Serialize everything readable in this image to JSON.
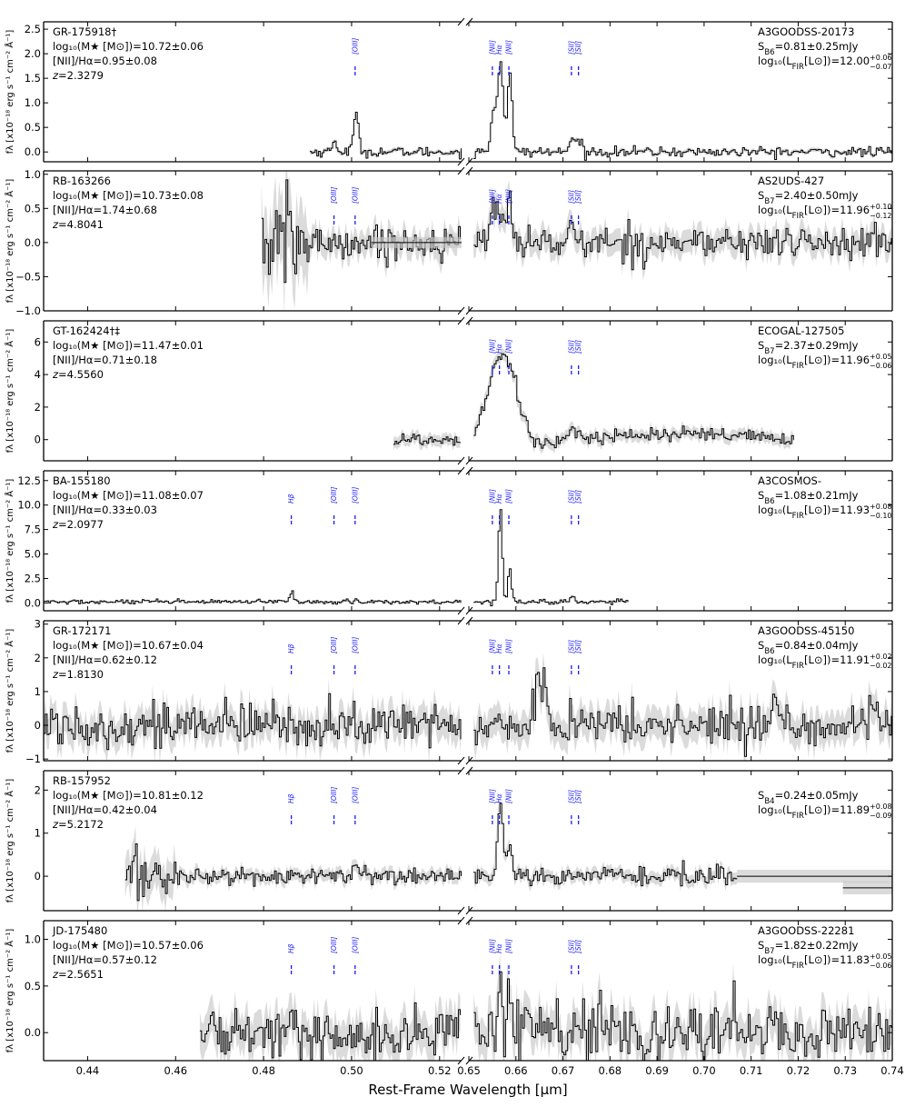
{
  "xlabel": "Rest-Frame Wavelength [μm]",
  "ylabel_text": "fλ [x10⁻¹⁸ erg s⁻¹ cm⁻² Å⁻¹]",
  "colors": {
    "spectrum": "#000000",
    "error": "#c8c8c8",
    "lines": "#1a1aff"
  },
  "chart_data": {
    "type": "line",
    "axis_breaks": [
      [
        0.525,
        0.65
      ]
    ],
    "x_ticks_left": [
      0.44,
      0.46,
      0.48,
      0.5,
      0.52
    ],
    "x_ticks_right": [
      0.65,
      0.66,
      0.67,
      0.68,
      0.69,
      0.7,
      0.71,
      0.72,
      0.73,
      0.74
    ],
    "xlim_left": [
      0.43,
      0.525
    ],
    "xlim_right": [
      0.65,
      0.74
    ],
    "emission_lines": [
      {
        "label": "Hβ",
        "wavelength": 0.4863
      },
      {
        "label": "[OIII]",
        "wavelength": 0.496
      },
      {
        "label": "[OIII]",
        "wavelength": 0.5008
      },
      {
        "label": "[NII]",
        "wavelength": 0.655
      },
      {
        "label": "Hα",
        "wavelength": 0.6565
      },
      {
        "label": "[NII]",
        "wavelength": 0.6585
      },
      {
        "label": "[SII]",
        "wavelength": 0.6718
      },
      {
        "label": "[SII]",
        "wavelength": 0.6733
      }
    ],
    "panels": [
      {
        "id": "GR-175918†",
        "mass": "log₁₀(M★ [M⊙])=10.72±0.06",
        "ratio": "[NII]/Hα=0.95±0.08",
        "redshift": "z=2.3279",
        "alma_id": "A3GOODSS-20173",
        "flux": "S_B6=0.81±0.25mJy",
        "lfir": "log₁₀(L_FIR[L⊙])=12.00",
        "lfir_err_up": "+0.06",
        "lfir_err_low": "−0.07",
        "ylim": [
          -0.2,
          2.65
        ],
        "yticks": [
          0.0,
          0.5,
          1.0,
          1.5,
          2.0,
          2.5
        ],
        "ytick_labels": [
          "0.0",
          "0.5",
          "1.0",
          "1.5",
          "2.0",
          "2.5"
        ],
        "lines_shown": [
          2,
          3,
          4,
          5,
          6,
          7
        ],
        "coverage": [
          [
            0.4905,
            0.525
          ],
          [
            0.651,
            0.74
          ]
        ],
        "noise": 0.05,
        "err_scale": 0.6,
        "continuum": 0.0,
        "features": [
          {
            "wavelength": 0.5008,
            "amplitude": 0.72,
            "sigma": 0.0006
          },
          {
            "wavelength": 0.496,
            "amplitude": 0.2,
            "sigma": 0.0006
          },
          {
            "wavelength": 0.655,
            "amplitude": 0.8,
            "sigma": 0.0005
          },
          {
            "wavelength": 0.6565,
            "amplitude": 1.85,
            "sigma": 0.0006
          },
          {
            "wavelength": 0.6585,
            "amplitude": 1.6,
            "sigma": 0.0005
          },
          {
            "wavelength": 0.6718,
            "amplitude": 0.3,
            "sigma": 0.0005
          },
          {
            "wavelength": 0.6733,
            "amplitude": 0.25,
            "sigma": 0.0005
          }
        ],
        "flat_segment": null
      },
      {
        "id": "RB-163266",
        "mass": "log₁₀(M★ [M⊙])=10.73±0.08",
        "ratio": "[NII]/Hα=1.74±0.68",
        "redshift": "z=4.8041",
        "alma_id": "AS2UDS-427",
        "flux": "S_B7=2.40±0.50mJy",
        "lfir": "log₁₀(L_FIR[L⊙])=11.96",
        "lfir_err_up": "+0.10",
        "lfir_err_low": "−0.12",
        "ylim": [
          -1.0,
          1.05
        ],
        "yticks": [
          -1.0,
          -0.5,
          0.0,
          0.5,
          1.0
        ],
        "ytick_labels": [
          "−1.0",
          "−0.5",
          "0.0",
          "0.5",
          "1.0"
        ],
        "lines_shown": [
          1,
          2,
          3,
          4,
          5,
          6,
          7
        ],
        "coverage": [
          [
            0.4795,
            0.525
          ],
          [
            0.651,
            0.74
          ]
        ],
        "noise": 0.12,
        "err_scale": 1.0,
        "continuum": 0.0,
        "noisy_start": 0.49,
        "features": [
          {
            "wavelength": 0.655,
            "amplitude": 0.45,
            "sigma": 0.0006
          },
          {
            "wavelength": 0.6565,
            "amplitude": 0.55,
            "sigma": 0.0006
          },
          {
            "wavelength": 0.6585,
            "amplitude": 0.75,
            "sigma": 0.0005
          },
          {
            "wavelength": 0.6718,
            "amplitude": 0.2,
            "sigma": 0.0005
          }
        ],
        "flat_segment": [
          0.5045,
          0.525,
          0.0,
          0.08
        ]
      },
      {
        "id": "GT-162424†‡",
        "mass": "log₁₀(M★ [M⊙])=11.47±0.01",
        "ratio": "[NII]/Hα=0.71±0.18",
        "redshift": "z=4.5560",
        "alma_id": "ECOGAL-127505",
        "flux": "S_B7=2.37±0.29mJy",
        "lfir": "log₁₀(L_FIR[L⊙])=11.96",
        "lfir_err_up": "+0.05",
        "lfir_err_low": "−0.06",
        "ylim": [
          -1.3,
          7.3
        ],
        "yticks": [
          0,
          2,
          4,
          6
        ],
        "ytick_labels": [
          "0",
          "2",
          "4",
          "6"
        ],
        "lines_shown": [
          3,
          4,
          5,
          6,
          7
        ],
        "coverage": [
          [
            0.5095,
            0.525
          ],
          [
            0.651,
            0.719
          ]
        ],
        "noise": 0.25,
        "err_scale": 1.0,
        "continuum": 0.0,
        "features": [
          {
            "wavelength": 0.657,
            "amplitude": 5.3,
            "sigma": 0.003
          }
        ],
        "broad_dip": true,
        "flat_segment": null
      },
      {
        "id": "BA-155180",
        "mass": "log₁₀(M★ [M⊙])=11.08±0.07",
        "ratio": "[NII]/Hα=0.33±0.03",
        "redshift": "z=2.0977",
        "alma_id": "A3COSMOS-",
        "flux": "S_B6=1.08±0.21mJy",
        "lfir": "log₁₀(L_FIR[L⊙])=11.93",
        "lfir_err_up": "+0.08",
        "lfir_err_low": "−0.10",
        "ylim": [
          -0.8,
          13.5
        ],
        "yticks": [
          0.0,
          2.5,
          5.0,
          7.5,
          10.0,
          12.5
        ],
        "ytick_labels": [
          "0.0",
          "2.5",
          "5.0",
          "7.5",
          "10.0",
          "12.5"
        ],
        "lines_shown": [
          0,
          1,
          2,
          3,
          4,
          5,
          6,
          7
        ],
        "coverage": [
          [
            0.43,
            0.525
          ],
          [
            0.651,
            0.684
          ]
        ],
        "noise": 0.12,
        "err_scale": 0.5,
        "continuum": 0.1,
        "features": [
          {
            "wavelength": 0.4863,
            "amplitude": 1.2,
            "sigma": 0.0004
          },
          {
            "wavelength": 0.5008,
            "amplitude": 0.4,
            "sigma": 0.0004
          },
          {
            "wavelength": 0.6565,
            "amplitude": 9.8,
            "sigma": 0.0004
          },
          {
            "wavelength": 0.6585,
            "amplitude": 3.4,
            "sigma": 0.0004
          },
          {
            "wavelength": 0.6718,
            "amplitude": 0.6,
            "sigma": 0.0005
          }
        ],
        "flat_segment": null
      },
      {
        "id": "GR-172171",
        "mass": "log₁₀(M★ [M⊙])=10.67±0.04",
        "ratio": "[NII]/Hα=0.62±0.12",
        "redshift": "z=1.8130",
        "alma_id": "A3GOODSS-45150",
        "flux": "S_B6=0.84±0.04mJy",
        "lfir": "log₁₀(L_FIR[L⊙])=11.91",
        "lfir_err_up": "+0.02",
        "lfir_err_low": "−0.02",
        "ylim": [
          -1.05,
          3.1
        ],
        "yticks": [
          -1,
          0,
          1,
          2,
          3
        ],
        "ytick_labels": [
          "−1",
          "0",
          "1",
          "2",
          "3"
        ],
        "lines_shown": [
          0,
          1,
          2,
          3,
          4,
          5,
          6,
          7
        ],
        "coverage": [
          [
            0.43,
            0.525
          ],
          [
            0.651,
            0.74
          ]
        ],
        "noise": 0.32,
        "err_scale": 1.0,
        "continuum": 0.0,
        "features": [
          {
            "wavelength": 0.6645,
            "amplitude": 2.1,
            "sigma": 0.0004
          },
          {
            "wavelength": 0.666,
            "amplitude": 1.5,
            "sigma": 0.0004
          },
          {
            "wavelength": 0.715,
            "amplitude": 1.1,
            "sigma": 0.0004
          }
        ],
        "flat_segment": null
      },
      {
        "id": "RB-157952",
        "mass": "log₁₀(M★ [M⊙])=10.81±0.12",
        "ratio": "[NII]/Hα=0.42±0.04",
        "redshift": "z=5.2172",
        "alma_id": "",
        "flux": "S_B4=0.24±0.05mJy",
        "lfir": "log₁₀(L_FIR[L⊙])=11.89",
        "lfir_err_up": "+0.08",
        "lfir_err_low": "−0.09",
        "ylim": [
          -0.8,
          2.45
        ],
        "yticks": [
          0,
          1,
          2
        ],
        "ytick_labels": [
          "0",
          "1",
          "2"
        ],
        "lines_shown": [
          0,
          1,
          2,
          3,
          4,
          5,
          6,
          7
        ],
        "coverage": [
          [
            0.4485,
            0.525
          ],
          [
            0.651,
            0.707
          ]
        ],
        "noise": 0.1,
        "err_scale": 1.0,
        "continuum": 0.0,
        "noisy_start": 0.46,
        "features": [
          {
            "wavelength": 0.5008,
            "amplitude": 0.3,
            "sigma": 0.0005
          },
          {
            "wavelength": 0.6565,
            "amplitude": 1.75,
            "sigma": 0.0005
          },
          {
            "wavelength": 0.6585,
            "amplitude": 0.65,
            "sigma": 0.0005
          }
        ],
        "flat_segment": [
          0.707,
          0.74,
          0.0,
          0.15
        ],
        "step_segment": [
          0.7295,
          0.74,
          -0.27,
          0.15
        ]
      },
      {
        "id": "JD-175480",
        "mass": "log₁₀(M★ [M⊙])=10.57±0.06",
        "ratio": "[NII]/Hα=0.57±0.12",
        "redshift": "z=2.5651",
        "alma_id": "A3GOODSS-22281",
        "flux": "S_B7=1.82±0.22mJy",
        "lfir": "log₁₀(L_FIR[L⊙])=11.83",
        "lfir_err_up": "+0.05",
        "lfir_err_low": "−0.06",
        "ylim": [
          -0.3,
          1.2
        ],
        "yticks": [
          0.0,
          0.5,
          1.0
        ],
        "ytick_labels": [
          "0.0",
          "0.5",
          "1.0"
        ],
        "lines_shown": [
          0,
          1,
          2,
          3,
          4,
          5,
          6,
          7
        ],
        "coverage": [
          [
            0.4655,
            0.525
          ],
          [
            0.651,
            0.74
          ]
        ],
        "noise": 0.14,
        "err_scale": 1.0,
        "continuum": 0.0,
        "features": [
          {
            "wavelength": 0.6565,
            "amplitude": 0.75,
            "sigma": 0.0004
          },
          {
            "wavelength": 0.6585,
            "amplitude": 0.3,
            "sigma": 0.0004
          }
        ],
        "flat_segment": null
      }
    ]
  }
}
